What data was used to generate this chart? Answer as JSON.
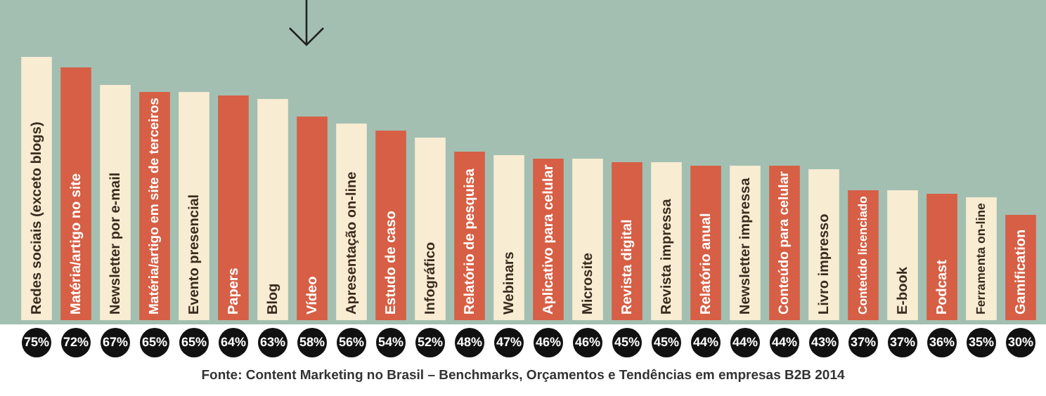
{
  "chart_data": {
    "type": "bar",
    "categories": [
      "Redes sociais (exceto blogs)",
      "Matéria/artigo no site",
      "Newsletter por e-mail",
      "Matéria/artigo em site de terceiros",
      "Evento presencial",
      "Papers",
      "Blog",
      "Vídeo",
      "Apresentação on-line",
      "Estudo de caso",
      "Infográfico",
      "Relatório de pesquisa",
      "Webinars",
      "Aplicativo para celular",
      "Microsite",
      "Revista digital",
      "Revista impressa",
      "Relatório anual",
      "Newsletter impressa",
      "Conteúdo para celular",
      "Livro impresso",
      "Conteúdo licenciado",
      "E-book",
      "Podcast",
      "Ferramenta on-line",
      "Gamification"
    ],
    "values": [
      75,
      72,
      67,
      65,
      65,
      64,
      63,
      58,
      56,
      54,
      52,
      48,
      47,
      46,
      46,
      45,
      45,
      44,
      44,
      44,
      43,
      37,
      37,
      36,
      35,
      30
    ],
    "value_labels": [
      "75%",
      "72%",
      "67%",
      "65%",
      "65%",
      "64%",
      "63%",
      "58%",
      "56%",
      "54%",
      "52%",
      "48%",
      "47%",
      "46%",
      "46%",
      "45%",
      "45%",
      "44%",
      "44%",
      "44%",
      "43%",
      "37%",
      "37%",
      "36%",
      "35%",
      "30%"
    ],
    "colors": [
      "#f8ecd2",
      "#d65f45",
      "#f8ecd2",
      "#d65f45",
      "#f8ecd2",
      "#d65f45",
      "#f8ecd2",
      "#d65f45",
      "#f8ecd2",
      "#d65f45",
      "#f8ecd2",
      "#d65f45",
      "#f8ecd2",
      "#d65f45",
      "#f8ecd2",
      "#d65f45",
      "#f8ecd2",
      "#d65f45",
      "#f8ecd2",
      "#d65f45",
      "#f8ecd2",
      "#d65f45",
      "#f8ecd2",
      "#d65f45",
      "#f8ecd2",
      "#d65f45"
    ],
    "relative": false,
    "annotations": [
      "Fonte: Content Marketing no Brasil – Benchmarks, Orçamentos e Tendências em empresas B2B 2014"
    ]
  }
}
